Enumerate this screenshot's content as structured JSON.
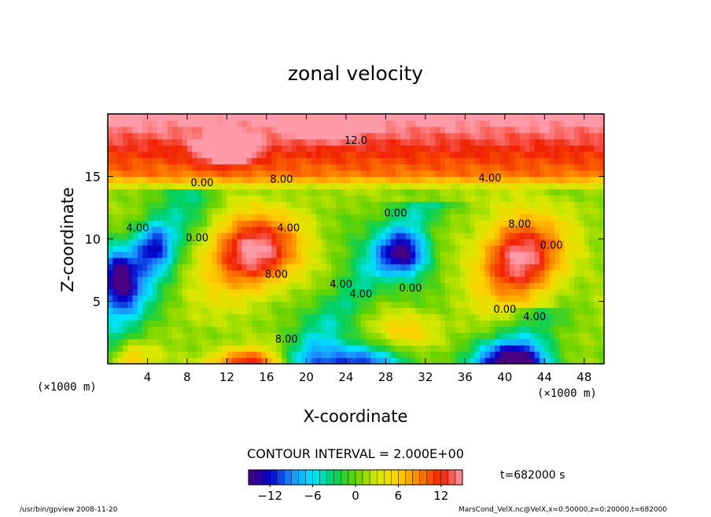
{
  "chart_data": {
    "type": "heatmap",
    "title": "zonal velocity",
    "xlabel": "X-coordinate",
    "ylabel": "Z-coordinate",
    "x_unit": "(×1000 m)",
    "y_unit": "(×1000 m)",
    "xlim": [
      0,
      50
    ],
    "ylim": [
      0,
      20
    ],
    "x_ticks": [
      4,
      8,
      12,
      16,
      20,
      24,
      28,
      32,
      36,
      40,
      44,
      48
    ],
    "y_ticks": [
      5,
      10,
      15
    ],
    "contour_interval_text": "CONTOUR INTERVAL = 2.000E+00",
    "time_text": "t=682000 s",
    "colorbar": {
      "range": [
        -15,
        15
      ],
      "ticks": [
        -12,
        -6,
        0,
        6,
        12
      ],
      "colors": [
        "#4b0082",
        "#0000cd",
        "#1e90ff",
        "#00e5ff",
        "#00d060",
        "#66d200",
        "#d8e800",
        "#ffd000",
        "#ff8000",
        "#f02000",
        "#ff9aa8"
      ]
    },
    "contour_labels": [
      {
        "text": "12.0",
        "x": 25.0,
        "z": 17.6
      },
      {
        "text": "8.00",
        "x": 17.5,
        "z": 14.5
      },
      {
        "text": "0.00",
        "x": 9.5,
        "z": 14.2
      },
      {
        "text": "4.00",
        "x": 38.5,
        "z": 14.6
      },
      {
        "text": "0.00",
        "x": 29.0,
        "z": 11.8
      },
      {
        "text": "4.00",
        "x": 3.0,
        "z": 10.6
      },
      {
        "text": "0.00",
        "x": 9.0,
        "z": 9.8
      },
      {
        "text": "4.00",
        "x": 18.2,
        "z": 10.6
      },
      {
        "text": "8.00",
        "x": 17.0,
        "z": 6.9
      },
      {
        "text": "4.00",
        "x": 23.5,
        "z": 6.1
      },
      {
        "text": "4.00",
        "x": 25.5,
        "z": 5.3
      },
      {
        "text": "0.00",
        "x": 30.5,
        "z": 5.8
      },
      {
        "text": "8.00",
        "x": 41.5,
        "z": 10.9
      },
      {
        "text": "0.00",
        "x": 44.7,
        "z": 9.2
      },
      {
        "text": "0.00",
        "x": 40.0,
        "z": 4.1
      },
      {
        "text": "4.00",
        "x": 43.0,
        "z": 3.5
      },
      {
        "text": "8.00",
        "x": 18.0,
        "z": 1.7
      }
    ],
    "features": [
      {
        "x": 14.5,
        "z": 9.0,
        "value": 15,
        "sx": 4.5,
        "sz": 3.0
      },
      {
        "x": 41.5,
        "z": 8.5,
        "value": 15,
        "sx": 4.0,
        "sz": 3.3
      },
      {
        "x": 30.0,
        "z": 2.8,
        "value": 6,
        "sx": 3.0,
        "sz": 1.5
      },
      {
        "x": 1.0,
        "z": 7.0,
        "value": -14,
        "sx": 2.0,
        "sz": 2.5
      },
      {
        "x": 4.5,
        "z": 9.5,
        "value": -9,
        "sx": 2.0,
        "sz": 2.0
      },
      {
        "x": 30.0,
        "z": 8.8,
        "value": -12,
        "sx": 2.5,
        "sz": 1.8
      },
      {
        "x": 25.0,
        "z": 0.0,
        "value": -10,
        "sx": 6.0,
        "sz": 1.5
      },
      {
        "x": 41.0,
        "z": 0.0,
        "value": -14,
        "sx": 4.0,
        "sz": 1.8
      },
      {
        "x": 14.0,
        "z": 0.0,
        "value": 13,
        "sx": 4.0,
        "sz": 1.2
      },
      {
        "x": 2.0,
        "z": 0.5,
        "value": 6,
        "sx": 2.0,
        "sz": 1.2
      },
      {
        "x": 21.5,
        "z": 19.3,
        "value": 15,
        "sx": 3.0,
        "sz": 1.0
      },
      {
        "x": 12.0,
        "z": 17.2,
        "value": 15,
        "sx": 2.5,
        "sz": 1.0
      }
    ]
  },
  "footer": {
    "left": "/usr/bin/gpview   2008-11-20",
    "right": "MarsCond_VelX.nc@VelX,x=0:50000,z=0:20000,t=682000"
  }
}
